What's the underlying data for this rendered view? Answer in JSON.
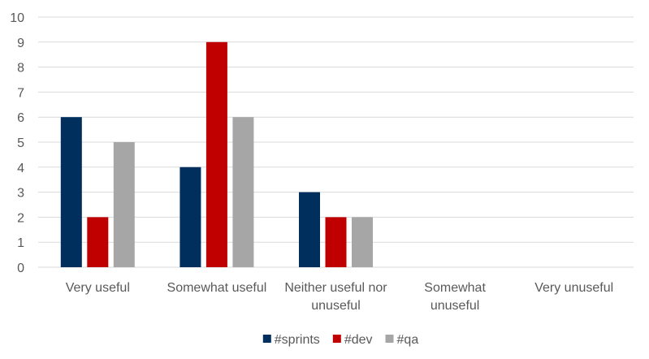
{
  "chart_data": {
    "type": "bar",
    "categories": [
      [
        "Very useful"
      ],
      [
        "Somewhat useful"
      ],
      [
        "Neither useful nor",
        "unuseful"
      ],
      [
        "Somewhat",
        "unuseful"
      ],
      [
        "Very unuseful"
      ]
    ],
    "series": [
      {
        "name": "#sprints",
        "color": "#002f5e",
        "values": [
          6,
          4,
          3,
          0,
          0
        ]
      },
      {
        "name": "#dev",
        "color": "#c00000",
        "values": [
          2,
          9,
          2,
          0,
          0
        ]
      },
      {
        "name": "#qa",
        "color": "#a6a6a6",
        "values": [
          5,
          6,
          2,
          0,
          0
        ]
      }
    ],
    "ylim": [
      0,
      10
    ],
    "yticks": [
      0,
      1,
      2,
      3,
      4,
      5,
      6,
      7,
      8,
      9,
      10
    ],
    "grid": true,
    "legend": "bottom-center",
    "title": "",
    "xlabel": "",
    "ylabel": ""
  }
}
